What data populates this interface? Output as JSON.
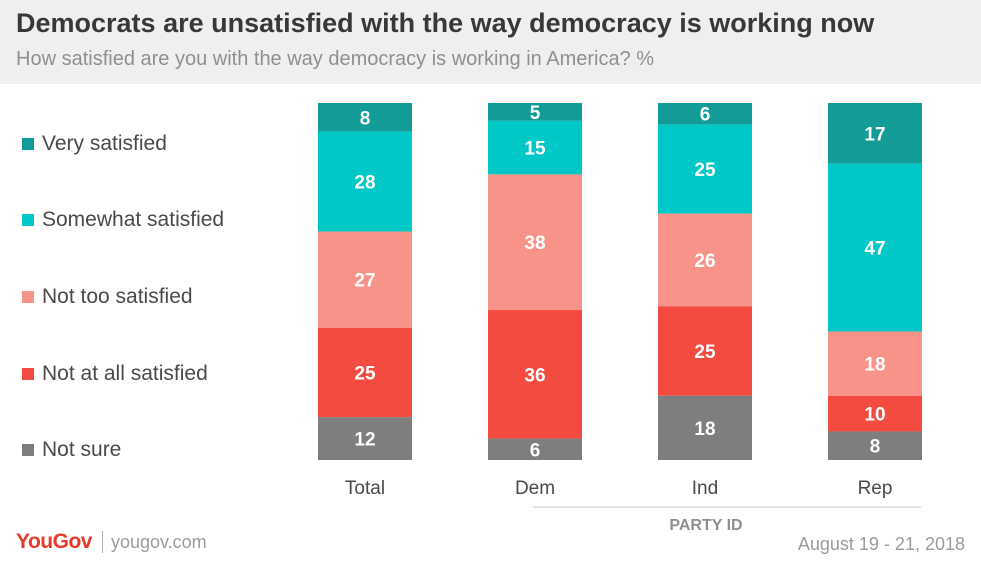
{
  "header": {
    "title": "Democrats are unsatisfied with the way democracy is working now",
    "subtitle": "How satisfied are you with the way democracy is working in America? %"
  },
  "chart_data": {
    "type": "bar",
    "stacked": true,
    "categories": [
      "Total",
      "Dem",
      "Ind",
      "Rep"
    ],
    "group_label": "PARTY ID",
    "series": [
      {
        "name": "Very satisfied",
        "color": "#139b97",
        "values": [
          8,
          5,
          6,
          17
        ]
      },
      {
        "name": "Somewhat satisfied",
        "color": "#00c8c6",
        "values": [
          28,
          15,
          25,
          47
        ]
      },
      {
        "name": "Not too satisfied",
        "color": "#f8938a",
        "values": [
          27,
          38,
          26,
          18
        ]
      },
      {
        "name": "Not at all satisfied",
        "color": "#f34b40",
        "values": [
          25,
          36,
          25,
          10
        ]
      },
      {
        "name": "Not sure",
        "color": "#7e7e7e",
        "values": [
          12,
          6,
          18,
          8
        ]
      }
    ],
    "legend_position": "left",
    "grid": false
  },
  "footer": {
    "brand": "YouGov",
    "site": "yougov.com",
    "date": "August 19 - 21, 2018"
  }
}
